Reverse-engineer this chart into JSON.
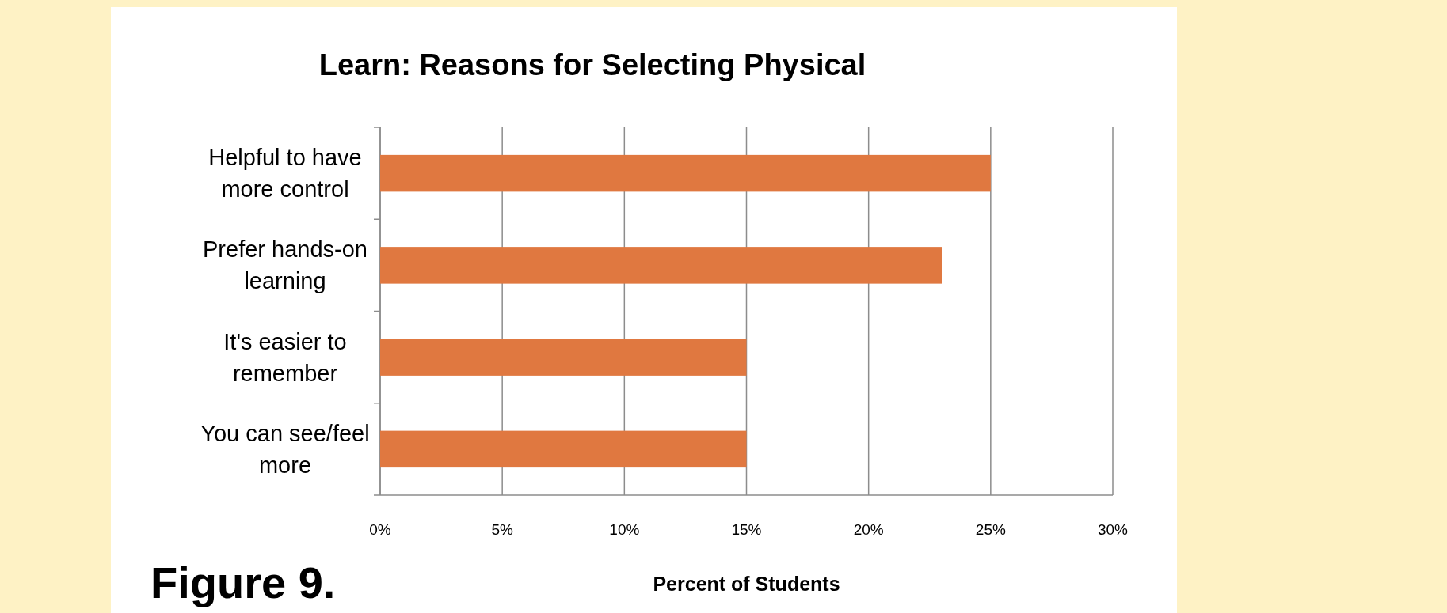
{
  "chart_data": {
    "type": "bar",
    "orientation": "horizontal",
    "title": "Learn: Reasons for Selecting Physical",
    "xlabel": "Percent of Students",
    "categories": [
      "Helpful to have more control",
      "Prefer hands-on learning",
      "It's easier to remember",
      "You can see/feel more"
    ],
    "values": [
      25,
      23,
      15,
      15
    ],
    "color": "#e07840",
    "xlim": [
      0,
      30
    ],
    "xticks": [
      {
        "value": 0,
        "label": "0%"
      },
      {
        "value": 5,
        "label": "5%"
      },
      {
        "value": 10,
        "label": "10%"
      },
      {
        "value": 15,
        "label": "15%"
      },
      {
        "value": 20,
        "label": "20%"
      },
      {
        "value": 25,
        "label": "25%"
      },
      {
        "value": 30,
        "label": "30%"
      }
    ],
    "grid": "x",
    "annotations": [
      "Figure 9."
    ]
  }
}
